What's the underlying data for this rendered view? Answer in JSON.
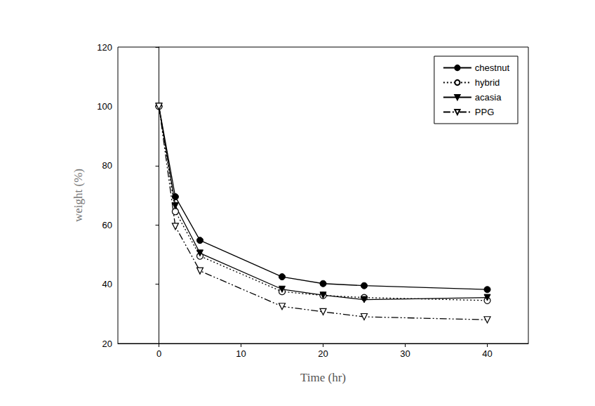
{
  "chart_data": {
    "type": "line",
    "x_label": "Time (hr)",
    "y_label": "weight (%)",
    "x": [
      0,
      2,
      5,
      15,
      20,
      25,
      40
    ],
    "series": [
      {
        "name": "chestnut",
        "color": "#000000",
        "marker": "circle",
        "line_style": "solid",
        "values": [
          100,
          69.5,
          54.8,
          42.5,
          40.2,
          39.5,
          38.2
        ]
      },
      {
        "name": "hybrid",
        "color": "#000000",
        "marker": "open_circle",
        "line_style": "dotted",
        "values": [
          100,
          64.5,
          49.5,
          37.5,
          36.2,
          35.5,
          34.5
        ]
      },
      {
        "name": "acasia",
        "color": "#000000",
        "marker": "triangle_down",
        "line_style": "solid",
        "values": [
          100,
          66.5,
          50.5,
          38.3,
          36.3,
          34.8,
          35.5
        ]
      },
      {
        "name": "PPG",
        "color": "#000000",
        "marker": "open_triangle_down",
        "line_style": "dash_dot_dot",
        "values": [
          100,
          59.5,
          44.5,
          32.5,
          30.7,
          29,
          28
        ]
      }
    ],
    "xlim": [
      -5,
      45
    ],
    "xticks": [
      0,
      10,
      20,
      30,
      40
    ],
    "ylim": [
      20,
      120
    ],
    "yticks": [
      20,
      40,
      60,
      80,
      100,
      120
    ],
    "legend": "top-right",
    "grid": false
  }
}
